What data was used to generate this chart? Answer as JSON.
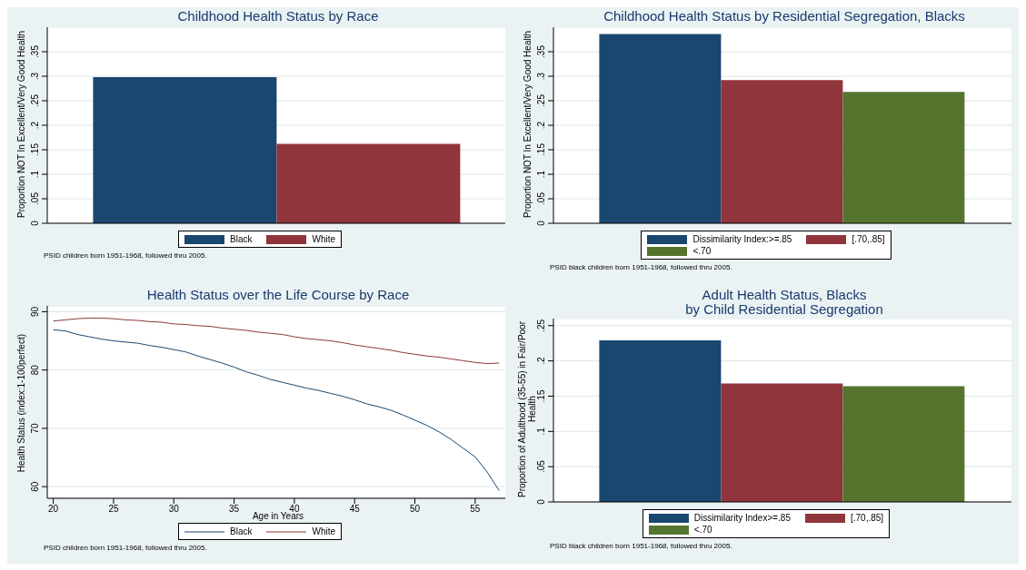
{
  "chart_data": [
    {
      "type": "bar",
      "title": "Childhood Health Status by Race",
      "ylabel": "Proportion NOT In Excellent/Very Good Health",
      "categories": [
        null
      ],
      "tick_labels": "y",
      "legend": "bottom",
      "grid": "y",
      "series": [
        {
          "name": "Black",
          "color": "#1a476f",
          "values": [
            0.298
          ]
        },
        {
          "name": "White",
          "color": "#90353b",
          "values": [
            0.162
          ]
        }
      ],
      "ylim": [
        0,
        0.4
      ],
      "yticks": [
        0,
        {
          "value": 0.05,
          "label": ".05"
        },
        {
          "value": 0.1,
          "label": ".1"
        },
        {
          "value": 0.15,
          "label": ".15"
        },
        {
          "value": 0.2,
          "label": ".2"
        },
        {
          "value": 0.25,
          "label": ".25"
        },
        {
          "value": 0.3,
          "label": ".3"
        },
        {
          "value": 0.35,
          "label": ".35"
        }
      ],
      "annotations": [
        "PSID children born 1951-1968, followed thru 2005."
      ]
    },
    {
      "type": "bar",
      "title": "Childhood Health Status by Residential Segregation, Blacks",
      "ylabel": "Proportion NOT In Excellent/Very Good Health",
      "categories": [
        null
      ],
      "tick_labels": "y",
      "legend": "bottom",
      "grid": "y",
      "series": [
        {
          "name": "Dissimilarity Index:>=.85",
          "color": "#1a476f",
          "values": [
            0.386
          ]
        },
        {
          "name": "[.70,.85]",
          "color": "#90353b",
          "values": [
            0.292
          ]
        },
        {
          "name": "<.70",
          "color": "#55752f",
          "values": [
            0.268
          ]
        }
      ],
      "ylim": [
        0,
        0.4
      ],
      "yticks": [
        0,
        {
          "value": 0.05,
          "label": ".05"
        },
        {
          "value": 0.1,
          "label": ".1"
        },
        {
          "value": 0.15,
          "label": ".15"
        },
        {
          "value": 0.2,
          "label": ".2"
        },
        {
          "value": 0.25,
          "label": ".25"
        },
        {
          "value": 0.3,
          "label": ".3"
        },
        {
          "value": 0.35,
          "label": ".35"
        }
      ],
      "annotations": [
        "PSID black children born 1951-1968, followed thru 2005."
      ]
    },
    {
      "type": "line",
      "title": "Health Status over the Life Course by Race",
      "xlabel": "Age in Years",
      "ylabel": "Health Status (index:1-100perfect)",
      "legend": "bottom",
      "grid": "y",
      "marker": "none",
      "line_style": "solid",
      "x": [
        20,
        21,
        22,
        23,
        24,
        25,
        26,
        27,
        28,
        29,
        30,
        31,
        32,
        33,
        34,
        35,
        36,
        37,
        38,
        39,
        40,
        41,
        42,
        43,
        44,
        45,
        46,
        47,
        48,
        49,
        50,
        51,
        52,
        53,
        54,
        55,
        56,
        57
      ],
      "series": [
        {
          "name": "Black",
          "color": "#1a476f",
          "values": [
            86.9,
            86.7,
            86.1,
            85.7,
            85.3,
            85.0,
            84.8,
            84.6,
            84.2,
            83.9,
            83.5,
            83.1,
            82.4,
            81.8,
            81.2,
            80.5,
            79.7,
            79.1,
            78.4,
            77.9,
            77.4,
            76.9,
            76.5,
            76.0,
            75.5,
            74.9,
            74.2,
            73.7,
            73.1,
            72.3,
            71.4,
            70.5,
            69.4,
            68.1,
            66.6,
            65.1,
            62.5,
            59.3
          ]
        },
        {
          "name": "White",
          "color": "#90353b",
          "values": [
            88.4,
            88.6,
            88.8,
            88.9,
            88.9,
            88.8,
            88.6,
            88.5,
            88.3,
            88.2,
            87.9,
            87.8,
            87.6,
            87.5,
            87.2,
            87.0,
            86.8,
            86.5,
            86.3,
            86.1,
            85.7,
            85.4,
            85.2,
            85.0,
            84.7,
            84.3,
            84.0,
            83.7,
            83.4,
            83.0,
            82.7,
            82.4,
            82.2,
            81.9,
            81.6,
            81.3,
            81.1,
            81.2
          ]
        }
      ],
      "xlim": [
        19.5,
        57.5
      ],
      "xticks": [
        20,
        25,
        30,
        35,
        40,
        45,
        50,
        55
      ],
      "ylim": [
        58,
        91
      ],
      "yticks": [
        60,
        70,
        80,
        90
      ],
      "annotations": [
        "PSID children born 1951-1968, followed thru 2005."
      ]
    },
    {
      "type": "bar",
      "title": "Adult Health Status, Blacks\nby Child Residential Segregation",
      "ylabel": "Proportion of Adulthood (35-55) in Fair/Poor Health",
      "categories": [
        null
      ],
      "tick_labels": "y",
      "legend": "bottom",
      "grid": "y",
      "series": [
        {
          "name": "Dissimilarity Index>=.85",
          "color": "#1a476f",
          "values": [
            0.229
          ]
        },
        {
          "name": "[.70,.85]",
          "color": "#90353b",
          "values": [
            0.168
          ]
        },
        {
          "name": "<.70",
          "color": "#55752f",
          "values": [
            0.164
          ]
        }
      ],
      "ylim": [
        0,
        0.26
      ],
      "yticks": [
        {
          "value": 0,
          "label": "0"
        },
        {
          "value": 0.05,
          "label": ".05"
        },
        {
          "value": 0.1,
          "label": ".1"
        },
        {
          "value": 0.15,
          "label": ".15"
        },
        {
          "value": 0.2,
          "label": ".2"
        },
        {
          "value": 0.25,
          "label": ".25"
        }
      ],
      "annotations": [
        "PSID black children born 1951-1968, followed thru 2005."
      ]
    }
  ]
}
